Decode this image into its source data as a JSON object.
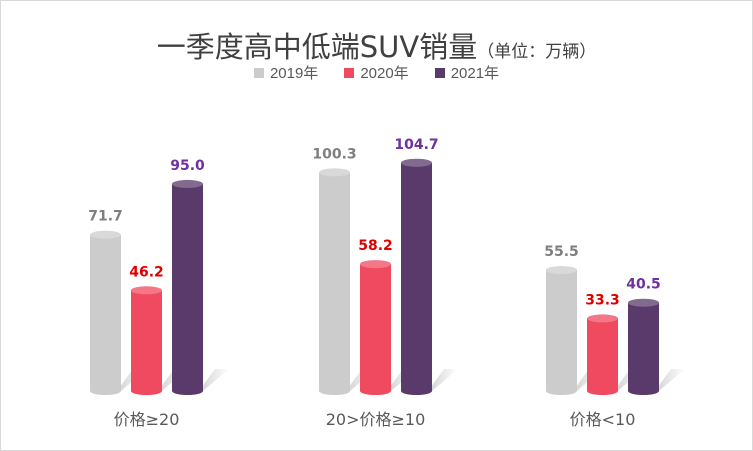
{
  "chart_data": {
    "type": "bar",
    "title": "一季度高中低端SUV销量",
    "title_unit": "（单位：万辆）",
    "categories": [
      "价格≥20",
      "20>价格≥10",
      "价格<10"
    ],
    "series": [
      {
        "name": "2019年",
        "color": "#cccccc",
        "label_color": "#7f7f7f",
        "values": [
          71.7,
          100.3,
          55.5
        ]
      },
      {
        "name": "2020年",
        "color": "#ef4a5f",
        "label_color": "#e00000",
        "values": [
          46.2,
          58.2,
          33.3
        ]
      },
      {
        "name": "2021年",
        "color": "#5a3a6a",
        "label_color": "#7030a0",
        "values": [
          95.0,
          104.7,
          40.5
        ]
      }
    ],
    "ylim": [
      0,
      120
    ],
    "grid": false,
    "legend_position": "top-center"
  }
}
